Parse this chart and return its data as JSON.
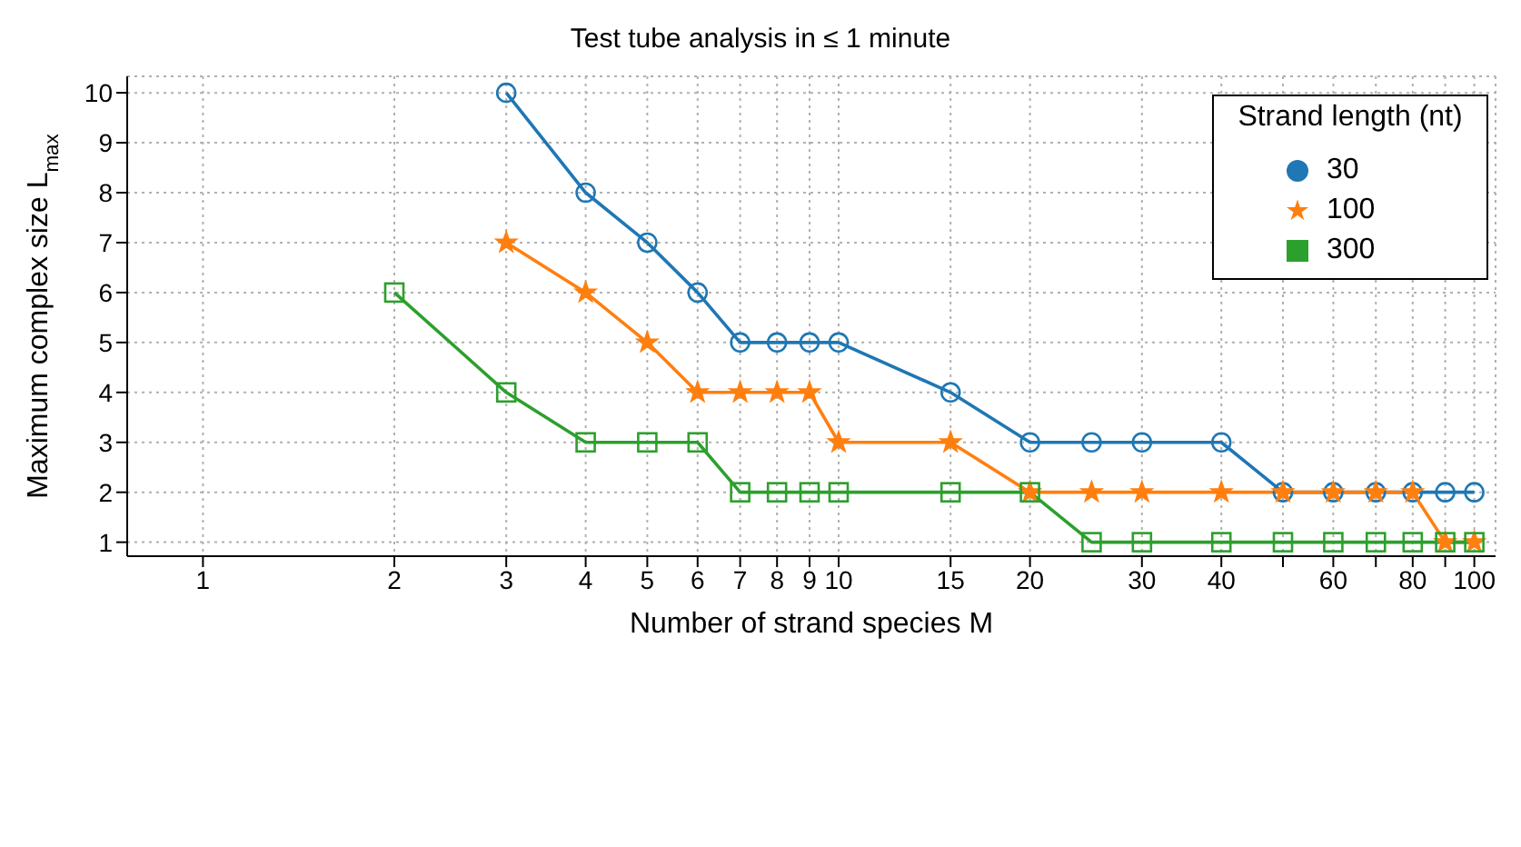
{
  "chart_data": {
    "type": "line",
    "title": "Test tube analysis in ≤ 1 minute",
    "xlabel": "Number of strand species M",
    "ylabel": "Maximum complex size L$_{max}$",
    "legend_title": "Strand length (nt)",
    "legend": "top right",
    "grid": true,
    "log": "x",
    "line_style": "solid",
    "xlim": [
      0.76,
      108
    ],
    "ylim": [
      0.72,
      10.33
    ],
    "xticks": [
      1,
      2,
      3,
      4,
      5,
      6,
      7,
      8,
      9,
      10,
      15,
      20,
      30,
      40,
      {
        "value": 50,
        "label": null
      },
      60,
      {
        "value": 70,
        "label": null
      },
      80,
      {
        "value": 90,
        "label": null
      },
      100
    ],
    "yticks": [
      1,
      2,
      3,
      4,
      5,
      6,
      7,
      8,
      9,
      10
    ],
    "series": [
      {
        "name": "30",
        "color": "#1f77b4",
        "marker": "circle",
        "x": [
          3,
          4,
          5,
          6,
          7,
          8,
          9,
          10,
          15,
          20,
          25,
          30,
          40,
          50,
          60,
          70,
          80,
          90,
          100
        ],
        "values": [
          10,
          8,
          7,
          6,
          5,
          5,
          5,
          5,
          4,
          3,
          3,
          3,
          3,
          2,
          2,
          2,
          2,
          2,
          2
        ]
      },
      {
        "name": "100",
        "color": "#ff7f0e",
        "marker": "star",
        "x": [
          3,
          4,
          5,
          6,
          7,
          8,
          9,
          10,
          15,
          20,
          25,
          30,
          40,
          50,
          60,
          70,
          80,
          90,
          100
        ],
        "values": [
          7,
          6,
          5,
          4,
          4,
          4,
          4,
          3,
          3,
          2,
          2,
          2,
          2,
          2,
          2,
          2,
          2,
          1,
          1
        ]
      },
      {
        "name": "300",
        "color": "#2ca02c",
        "marker": "square",
        "x": [
          2,
          3,
          4,
          5,
          6,
          7,
          8,
          9,
          10,
          15,
          20,
          25,
          30,
          40,
          50,
          60,
          70,
          80,
          90,
          100
        ],
        "values": [
          6,
          4,
          3,
          3,
          3,
          2,
          2,
          2,
          2,
          2,
          2,
          1,
          1,
          1,
          1,
          1,
          1,
          1,
          1,
          1
        ]
      }
    ]
  }
}
